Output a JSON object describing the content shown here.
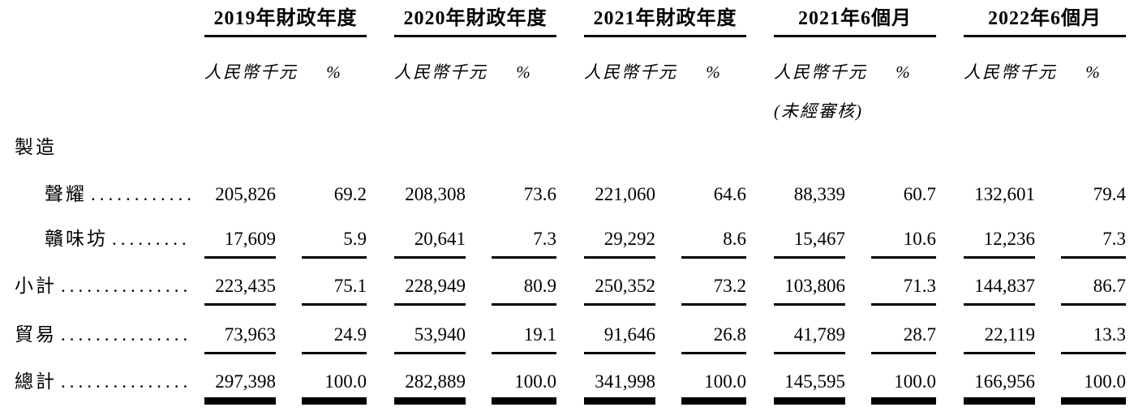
{
  "header": {
    "groups": [
      {
        "title": "2019年財政年度",
        "unit": "人民幣千元",
        "pct": "%"
      },
      {
        "title": "2020年財政年度",
        "unit": "人民幣千元",
        "pct": "%"
      },
      {
        "title": "2021年財政年度",
        "unit": "人民幣千元",
        "pct": "%"
      },
      {
        "title": "2021年6個月",
        "unit": "人民幣千元",
        "pct": "%",
        "note": "(未經審核)"
      },
      {
        "title": "2022年6個月",
        "unit": "人民幣千元",
        "pct": "%"
      }
    ]
  },
  "section_header": "製造",
  "dot_leader": "..............................",
  "rows": [
    {
      "label": "聲耀",
      "amounts": [
        "205,826",
        "208,308",
        "221,060",
        "88,339",
        "132,601"
      ],
      "pcts": [
        "69.2",
        "73.6",
        "64.6",
        "60.7",
        "79.4"
      ]
    },
    {
      "label": "贛味坊",
      "amounts": [
        "17,609",
        "20,641",
        "29,292",
        "15,467",
        "12,236"
      ],
      "pcts": [
        "5.9",
        "7.3",
        "8.6",
        "10.6",
        "7.3"
      ]
    },
    {
      "label": "小計",
      "amounts": [
        "223,435",
        "228,949",
        "250,352",
        "103,806",
        "144,837"
      ],
      "pcts": [
        "75.1",
        "80.9",
        "73.2",
        "71.3",
        "86.7"
      ]
    },
    {
      "label": "貿易",
      "amounts": [
        "73,963",
        "53,940",
        "91,646",
        "41,789",
        "22,119"
      ],
      "pcts": [
        "24.9",
        "19.1",
        "26.8",
        "28.7",
        "13.3"
      ]
    },
    {
      "label": "總計",
      "amounts": [
        "297,398",
        "282,889",
        "341,998",
        "145,595",
        "166,956"
      ],
      "pcts": [
        "100.0",
        "100.0",
        "100.0",
        "100.0",
        "100.0"
      ]
    }
  ],
  "colors": {
    "text": "#000000",
    "background": "#ffffff",
    "rule": "#000000"
  }
}
